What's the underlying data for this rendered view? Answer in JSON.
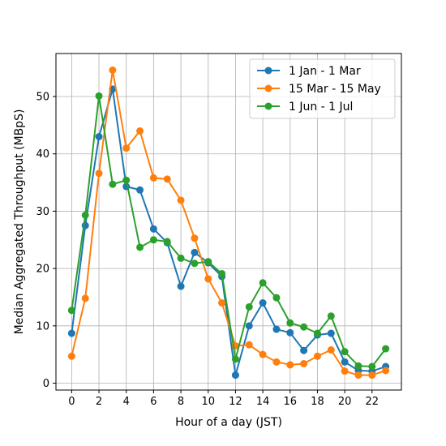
{
  "chart_data": {
    "type": "line",
    "title": "",
    "xlabel": "Hour of a day (JST)",
    "ylabel": "Median Aggregated Throughput (MBpS)",
    "xlim": [
      -1.15,
      24.15
    ],
    "ylim": [
      -1.2,
      57.5
    ],
    "xticks": [
      0,
      2,
      4,
      6,
      8,
      10,
      12,
      14,
      16,
      18,
      20,
      22
    ],
    "yticks": [
      0,
      10,
      20,
      30,
      40,
      50
    ],
    "grid": true,
    "legend_position": "top-right",
    "x": [
      0,
      1,
      2,
      3,
      4,
      5,
      6,
      7,
      8,
      9,
      10,
      11,
      12,
      13,
      14,
      15,
      16,
      17,
      18,
      19,
      20,
      21,
      22,
      23
    ],
    "series": [
      {
        "name": "1 Jan - 1 Mar",
        "color": "#1f77b4",
        "values": [
          8.7,
          27.5,
          43.0,
          51.3,
          34.3,
          33.7,
          26.9,
          24.5,
          16.9,
          22.8,
          21.0,
          18.6,
          1.4,
          10.0,
          14.0,
          9.4,
          8.8,
          5.7,
          8.4,
          8.7,
          3.7,
          2.2,
          2.1,
          2.9
        ]
      },
      {
        "name": "15 Mar - 15 May",
        "color": "#ff7f0e",
        "values": [
          4.7,
          14.8,
          36.6,
          54.6,
          41.0,
          44.0,
          35.8,
          35.6,
          31.9,
          25.3,
          18.2,
          14.0,
          6.5,
          6.7,
          5.0,
          3.7,
          3.2,
          3.4,
          4.7,
          5.8,
          2.1,
          1.4,
          1.4,
          2.2
        ]
      },
      {
        "name": "1 Jun - 1 Jul",
        "color": "#2ca02c",
        "values": [
          12.7,
          29.3,
          50.1,
          34.7,
          35.4,
          23.7,
          25.0,
          24.7,
          21.8,
          20.9,
          21.2,
          19.1,
          4.2,
          13.3,
          17.5,
          14.9,
          10.5,
          9.8,
          8.7,
          11.7,
          5.5,
          3.0,
          2.9,
          6.0
        ]
      }
    ]
  }
}
